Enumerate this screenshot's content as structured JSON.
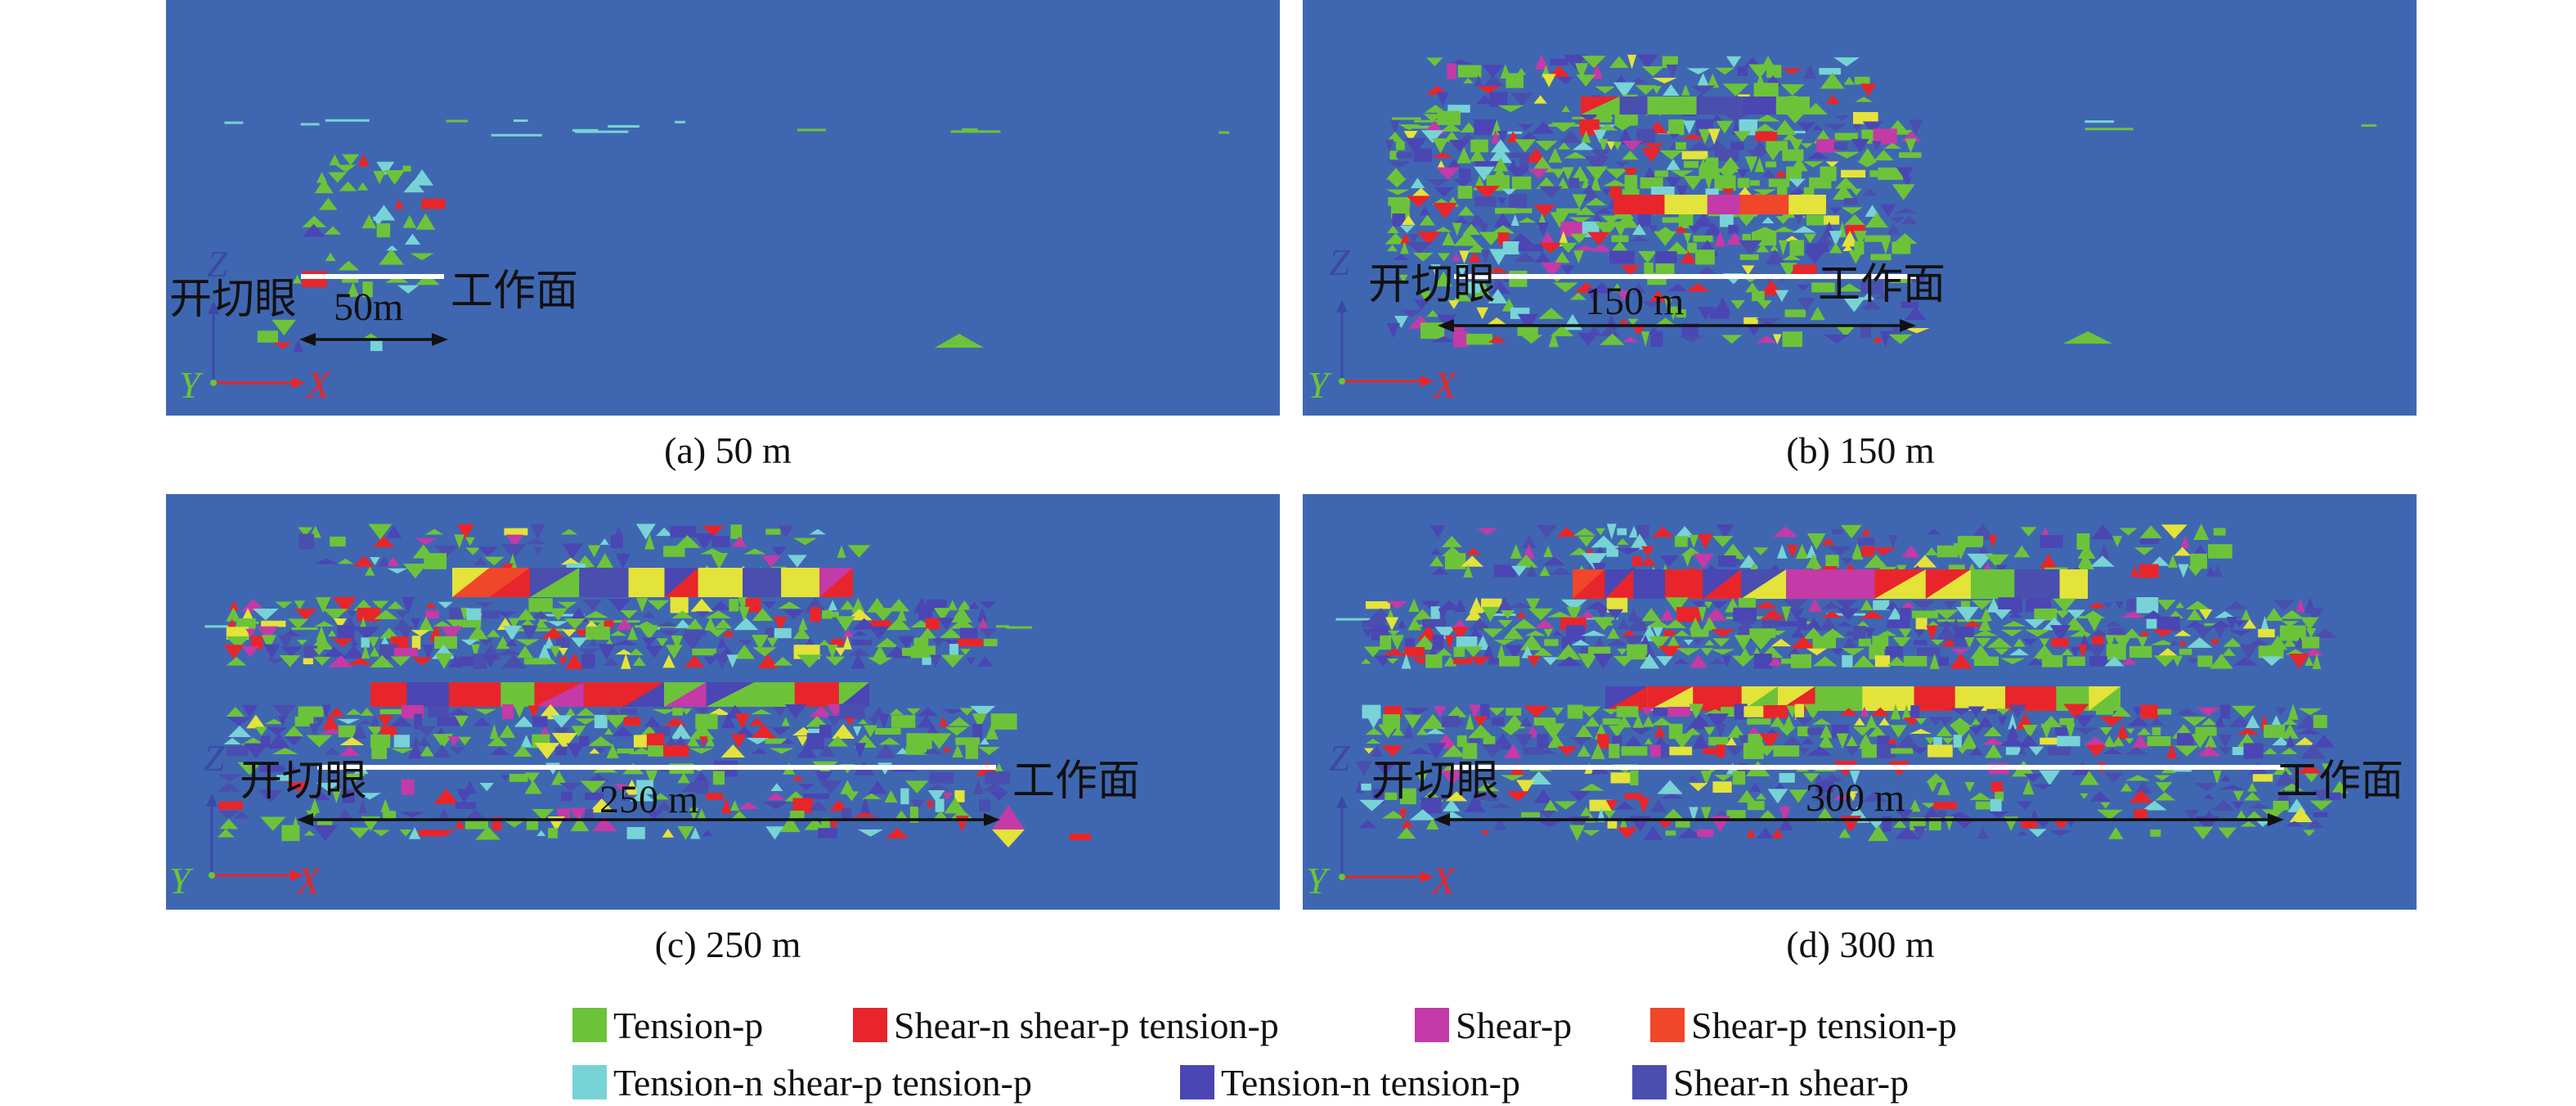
{
  "labels": {
    "start": "开切眼",
    "face": "工作面",
    "axis_z": "Z",
    "axis_y": "Y",
    "axis_x": "X"
  },
  "panels": [
    {
      "id": "a",
      "caption": "(a) 50 m",
      "distance": "50m"
    },
    {
      "id": "b",
      "caption": "(b) 150 m",
      "distance": "150 m"
    },
    {
      "id": "c",
      "caption": "(c) 250 m",
      "distance": "250 m"
    },
    {
      "id": "d",
      "caption": "(d) 300 m",
      "distance": "300 m"
    }
  ],
  "legend": [
    {
      "label": "Tension-p",
      "color": "#6cc33a"
    },
    {
      "label": "Shear-n shear-p tension-p",
      "color": "#e8252a"
    },
    {
      "label": "Shear-p",
      "color": "#c43aa7"
    },
    {
      "label": "Shear-p tension-p",
      "color": "#f0462a"
    },
    {
      "label": "Tension-n shear-p tension-p",
      "color": "#77d3d6"
    },
    {
      "label": "Tension-n tension-p",
      "color": "#4a46b4"
    },
    {
      "label": "Shear-n shear-p",
      "color": "#4a4eae"
    }
  ],
  "colors": {
    "background": "#3f67b1",
    "seam_line": "#ffffff",
    "yellow_zone": "#e3e33a",
    "axis_x": "#e8252a",
    "axis_y": "#6cc33a",
    "axis_z": "#3a4aa8"
  }
}
